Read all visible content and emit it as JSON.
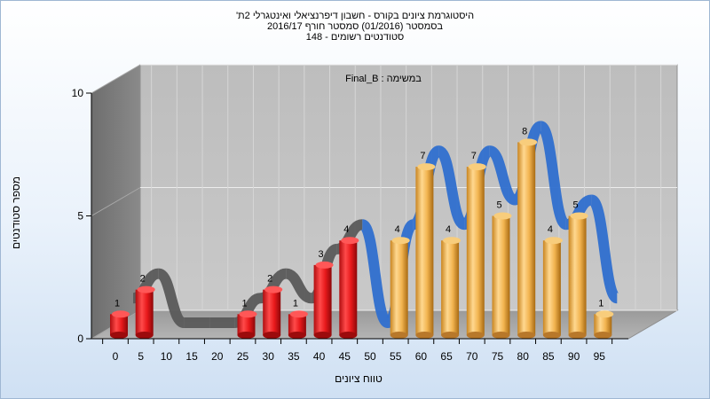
{
  "chart_data": {
    "type": "bar",
    "title_lines": [
      "היסטוגרמת ציונים בקורס - חשבון דיפרנציאלי ואינטגרלי 2ת'",
      "בסמסטר  (01/2016)  סמסטר חורף 2016/17",
      "סטודנטים רשומים - 148"
    ],
    "annotation": "במשימה : Final_B",
    "xlabel": "טווח ציונים",
    "ylabel": "מספר סטודנטים",
    "ylim": [
      0,
      10
    ],
    "y_ticks": [
      "0",
      "5",
      "10"
    ],
    "categories": [
      "0",
      "5",
      "10",
      "15",
      "20",
      "25",
      "30",
      "35",
      "40",
      "45",
      "50",
      "55",
      "60",
      "65",
      "70",
      "75",
      "80",
      "85",
      "90",
      "95"
    ],
    "values": [
      1,
      2,
      0,
      0,
      0,
      1,
      2,
      1,
      3,
      4,
      0,
      4,
      7,
      4,
      7,
      5,
      8,
      4,
      5,
      1
    ],
    "bar_colors": {
      "fail": "#e8191b",
      "pass": "#f2b450"
    },
    "pass_from_index": 11,
    "grid": true
  }
}
